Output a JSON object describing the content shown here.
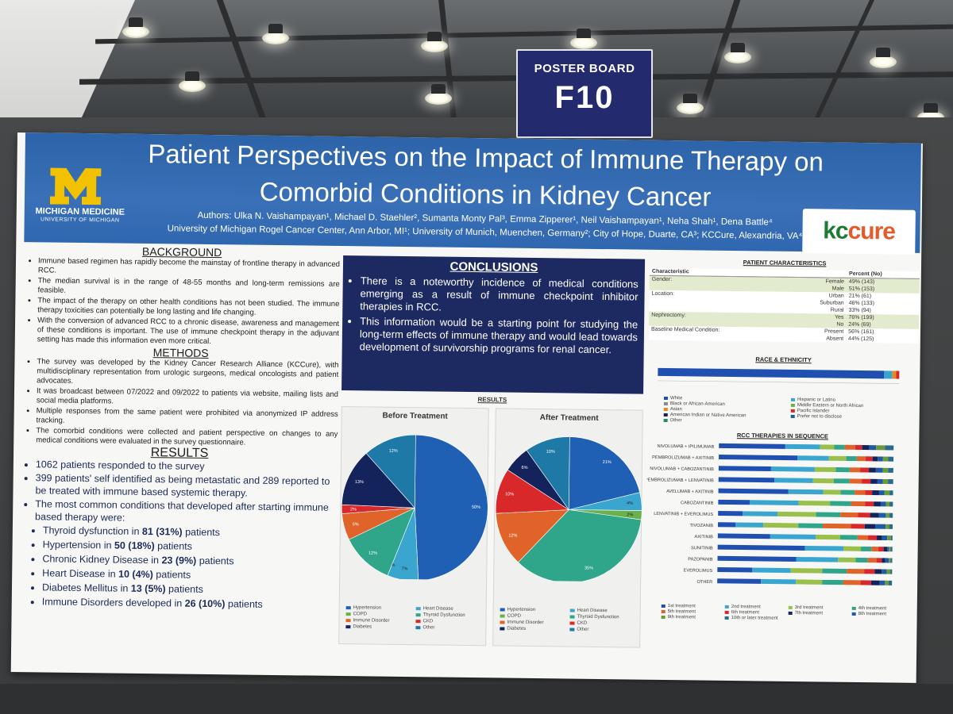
{
  "sign": {
    "label": "POSTER BOARD",
    "number": "F10"
  },
  "header": {
    "title_line1": "Patient Perspectives on the Impact of Immune Therapy on",
    "title_line2": "Comorbid Conditions in Kidney Cancer",
    "authors": "Authors: Ulka N. Vaishampayan¹, Michael D. Staehler², Sumanta Monty Pal³, Emma Zipperer¹, Neil Vaishampayan¹, Neha Shah¹, Dena Battle⁴",
    "affiliations": "University of Michigan Rogel Cancer Center, Ann Arbor, MI¹; University of Munich, Muenchen, Germany²; City of Hope, Duarte, CA³; KCCure, Alexandria, VA⁴",
    "logo_text": "MICHIGAN MEDICINE",
    "logo_subtext": "UNIVERSITY OF MICHIGAN",
    "kcc_logo_k": "kc",
    "kcc_logo_c": "cure",
    "brand_color": "#2d63a8"
  },
  "background": {
    "heading": "BACKGROUND",
    "items": [
      "Immune based regimen has rapidly become the mainstay of frontline therapy in advanced RCC.",
      "The median survival is in the range of 48-55 months and long-term remissions are feasible.",
      "The impact of the therapy on other health conditions has not been studied. The immune therapy toxicities can potentially be long lasting and life changing.",
      "With the conversion of advanced RCC to a chronic disease, awareness and management of these conditions is important. The use of immune checkpoint therapy in the adjuvant setting has made this information even more critical."
    ]
  },
  "methods": {
    "heading": "METHODS",
    "items": [
      "The survey was developed by the Kidney Cancer Research Alliance (KCCure), with multidisciplinary representation from urologic surgeons, medical oncologists and patient advocates.",
      "It was broadcast between 07/2022 and 09/2022 to patients via website, mailing lists and social media platforms.",
      "Multiple responses from the same patient were prohibited via anonymized IP address tracking.",
      "The comorbid conditions were collected and patient perspective on changes to any medical conditions were evaluated in the survey questionnaire."
    ]
  },
  "results": {
    "heading": "RESULTS",
    "items": [
      "1062 patients responded to the survey",
      "399 patients' self identified as being metastatic and 289 reported to be treated with immune based systemic therapy.",
      "The most common conditions that developed after starting immune based therapy were:"
    ],
    "conditions": [
      {
        "pre": "Thyroid dysfunction in ",
        "bold": "81 (31%)",
        "post": " patients"
      },
      {
        "pre": "Hypertension in ",
        "bold": "50 (18%)",
        "post": " patients"
      },
      {
        "pre": "Chronic Kidney Disease in ",
        "bold": "23 (9%)",
        "post": " patients"
      },
      {
        "pre": "Heart Disease in ",
        "bold": "10 (4%)",
        "post": " patients"
      },
      {
        "pre": "Diabetes Mellitus in ",
        "bold": "13 (5%)",
        "post": " patients"
      },
      {
        "pre": "Immune Disorders developed in ",
        "bold": "26 (10%)",
        "post": " patients"
      }
    ]
  },
  "conclusions": {
    "heading": "CONCLUSIONS",
    "items": [
      "There is a noteworthy incidence of medical conditions emerging as a result of immune checkpoint inhibitor therapies in RCC.",
      "This information would be a starting point for studying the long-term effects of immune therapy and would lead towards development of survivorship programs for renal cancer."
    ]
  },
  "results_charts_label": "RESULTS",
  "chart_data": [
    {
      "type": "pie",
      "title": "Before Treatment",
      "categories": [
        "Hypertension",
        "Heart Disease",
        "COPD",
        "Thyroid Dysfunction",
        "Immune Disorder",
        "CKD",
        "Diabetes",
        "Other"
      ],
      "values": [
        50,
        7,
        0,
        12,
        6,
        2,
        13,
        12
      ],
      "labels": [
        "50%",
        "7%",
        "0%",
        "12%",
        "6%",
        "2%",
        "13%",
        "12%"
      ],
      "colors": [
        "#1f5fb4",
        "#3aa6cf",
        "#6ab04c",
        "#2fa58a",
        "#e0642a",
        "#d8282a",
        "#15235c",
        "#1e79a6"
      ]
    },
    {
      "type": "pie",
      "title": "After Treatment",
      "categories": [
        "Hypertension",
        "Heart Disease",
        "COPD",
        "Thyroid Dysfunction",
        "Immune Disorder",
        "CKD",
        "Diabetes",
        "Other"
      ],
      "values": [
        21,
        4,
        2,
        35,
        12,
        10,
        6,
        10
      ],
      "labels": [
        "21%",
        "4%",
        "2%",
        "35%",
        "12%",
        "10%",
        "6%",
        "10%"
      ],
      "colors": [
        "#1f5fb4",
        "#3aa6cf",
        "#6ab04c",
        "#2fa58a",
        "#e0642a",
        "#d8282a",
        "#15235c",
        "#1e79a6"
      ]
    }
  ],
  "patient_characteristics": {
    "title": "PATIENT CHARACTERISTICS",
    "col1": "Characteristic",
    "col2": "Percent (No)",
    "rows": [
      {
        "cat": "Gender:",
        "label": "Female",
        "value": "49% (143)",
        "shade": "g"
      },
      {
        "cat": "",
        "label": "Male",
        "value": "51% (153)",
        "shade": "g"
      },
      {
        "cat": "Location:",
        "label": "Urban",
        "value": "21% (61)",
        "shade": "w"
      },
      {
        "cat": "",
        "label": "Suburban",
        "value": "46% (133)",
        "shade": "w"
      },
      {
        "cat": "",
        "label": "Rural",
        "value": "33% (94)",
        "shade": "w"
      },
      {
        "cat": "Nephrectomy:",
        "label": "Yes",
        "value": "76% (199)",
        "shade": "g"
      },
      {
        "cat": "",
        "label": "No",
        "value": "24% (69)",
        "shade": "g"
      },
      {
        "cat": "Baseline Medical Condition:",
        "label": "Present",
        "value": "56% (161)",
        "shade": "w"
      },
      {
        "cat": "",
        "label": "Absent",
        "value": "44% (125)",
        "shade": "w"
      }
    ]
  },
  "race": {
    "title": "RACE & ETHNICITY",
    "legend": [
      "White",
      "Hispanic or Latino",
      "Black or African-American",
      "Middle Eastern or North African",
      "Asian",
      "Pacific Islander",
      "American Indian or Native American",
      "Prefer not to disclose",
      "Other"
    ],
    "legend_colors": [
      "#1f4fb0",
      "#3aa6cf",
      "#8a8a8a",
      "#6ab04c",
      "#e08a2a",
      "#d8282a",
      "#15235c",
      "#1e5aa6",
      "#2a8a5a"
    ]
  },
  "rcc": {
    "title": "RCC THERAPIES IN SEQUENCE",
    "therapies": [
      "NIVOLUMAB + IPILIMUMAB",
      "PEMBROLIZUMAB + AXITINIB",
      "NIVOLUMAB + CABOZANTINIB",
      "PEMBROLIZUMAB + LENVATINIB",
      "AVELUMAB + AXITINIB",
      "CABOZANTINIB",
      "LENVATINIB + EVEROLIMUS",
      "TIVOZANIB",
      "AXITINIB",
      "SUNITINIB",
      "PAZOPANIB",
      "EVEROLIMUS",
      "OTHER"
    ],
    "legend": [
      "1st treatment",
      "2nd treatment",
      "3rd treatment",
      "4th treatment",
      "5th treatment",
      "6th treatment",
      "7th treatment",
      "8th treatment",
      "9th treatment",
      "10th or later treatment"
    ],
    "legend_colors": [
      "#1f4fb0",
      "#3aa6cf",
      "#9ac04c",
      "#2fa58a",
      "#e0642a",
      "#d8282a",
      "#15235c",
      "#1e5aa6",
      "#6a9a3a",
      "#2a6a8a"
    ]
  }
}
